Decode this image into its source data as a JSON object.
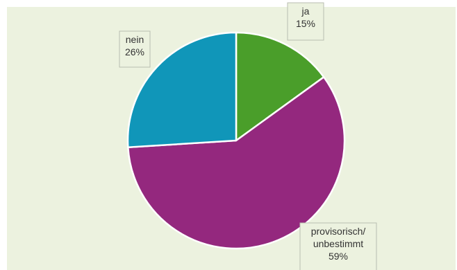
{
  "chart_data": {
    "type": "pie",
    "slices": [
      {
        "label_lines": [
          "ja"
        ],
        "value_text": "15%",
        "value": 15,
        "color": "#4a9e2a"
      },
      {
        "label_lines": [
          "provisorisch/",
          "unbestimmt"
        ],
        "value_text": "59%",
        "value": 59,
        "color": "#94287e"
      },
      {
        "label_lines": [
          "nein"
        ],
        "value_text": "26%",
        "value": 26,
        "color": "#1096b9"
      }
    ],
    "start": "12 o'clock",
    "direction": "clockwise",
    "plot_background": "#ecf2df",
    "legend": "none"
  }
}
